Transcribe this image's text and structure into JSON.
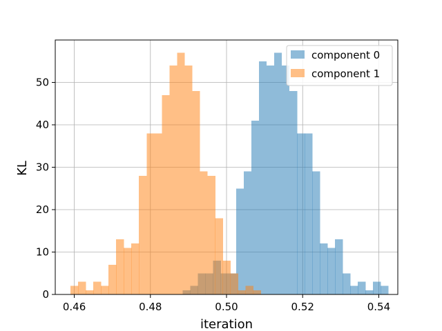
{
  "chart_data": {
    "type": "bar",
    "subtype": "histogram",
    "title": "",
    "xlabel": "iteration",
    "ylabel": "KL",
    "xlim": [
      0.455,
      0.545
    ],
    "ylim": [
      0,
      60
    ],
    "xticks": [
      "0.46",
      "0.48",
      "0.50",
      "0.52",
      "0.54"
    ],
    "yticks": [
      "0",
      "10",
      "20",
      "30",
      "40",
      "50"
    ],
    "grid": true,
    "legend_position": "upper right",
    "bin_width": 0.002,
    "series": [
      {
        "name": "component 0",
        "color": "#1f77b4",
        "alpha": 0.5,
        "bin_start": 0.4885,
        "counts": [
          1,
          2,
          5,
          5,
          8,
          5,
          5,
          25,
          29,
          41,
          55,
          54,
          57,
          54,
          48,
          38,
          38,
          29,
          12,
          11,
          13,
          5,
          2,
          3,
          1,
          3,
          2
        ]
      },
      {
        "name": "component 1",
        "color": "#ff7f0e",
        "alpha": 0.5,
        "bin_start": 0.459,
        "counts": [
          2,
          3,
          1,
          3,
          2,
          7,
          13,
          11,
          12,
          28,
          38,
          38,
          47,
          54,
          57,
          54,
          48,
          29,
          28,
          18,
          8,
          5,
          1,
          2,
          1
        ]
      }
    ]
  }
}
